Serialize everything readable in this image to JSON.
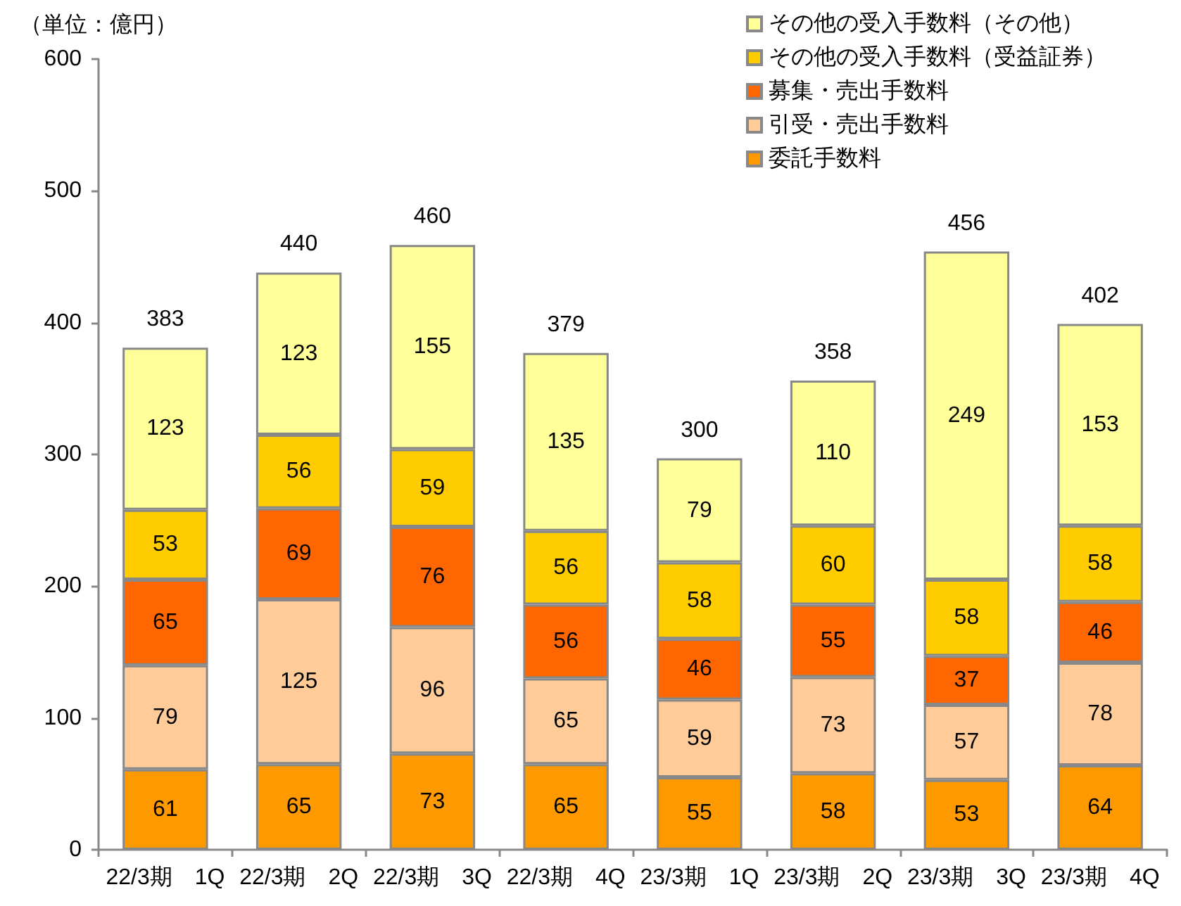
{
  "chart_data": {
    "type": "bar",
    "stacked": true,
    "ylabel": "（単位：億円）",
    "categories": [
      "22/3期　1Q",
      "22/3期　2Q",
      "22/3期　3Q",
      "22/3期　4Q",
      "23/3期　1Q",
      "23/3期　2Q",
      "23/3期　3Q",
      "23/3期　4Q"
    ],
    "series": [
      {
        "name": "委託手数料",
        "color": "#ff9900",
        "values": [
          61,
          65,
          73,
          65,
          55,
          58,
          53,
          64
        ]
      },
      {
        "name": "引受・売出手数料",
        "color": "#ffcc99",
        "values": [
          79,
          125,
          96,
          65,
          59,
          73,
          57,
          78
        ]
      },
      {
        "name": "募集・売出手数料",
        "color": "#ff6600",
        "values": [
          65,
          69,
          76,
          56,
          46,
          55,
          37,
          46
        ]
      },
      {
        "name": "その他の受入手数料（受益証券）",
        "color": "#ffcc00",
        "values": [
          53,
          56,
          59,
          56,
          58,
          60,
          58,
          58
        ]
      },
      {
        "name": "その他の受入手数料（その他）",
        "color": "#ffff99",
        "values": [
          123,
          123,
          155,
          135,
          79,
          110,
          249,
          153
        ]
      }
    ],
    "totals": [
      "383",
      "440",
      "460",
      "379",
      "300",
      "358",
      "456",
      "402"
    ],
    "ylim": [
      0,
      600
    ],
    "yticks": [
      0,
      100,
      200,
      300,
      400,
      500,
      600
    ],
    "data_labels": true,
    "legend": "top right"
  }
}
